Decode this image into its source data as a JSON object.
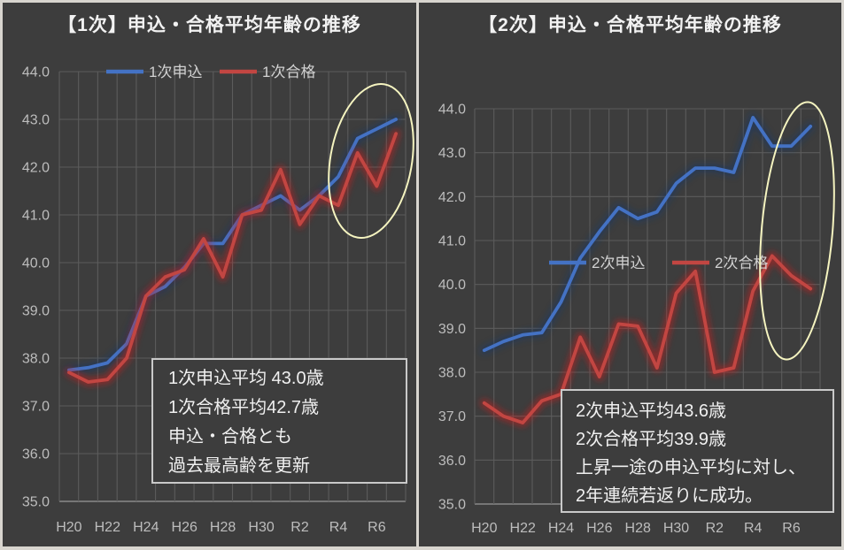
{
  "app": {
    "background_color": "#3d3d3d",
    "frame_border_color": "#d8d5cf"
  },
  "colors": {
    "grid": "#5c5c5c",
    "axis_line": "#8a8a8a",
    "tick_text": "#bdbdbd",
    "title_text": "#f2f2f2",
    "annotation_border": "#c9c9c9",
    "annotation_text": "#f0f0f0",
    "applicant_blue": "#4472c4",
    "pass_red": "#c24642",
    "highlight_yellow": "#f5f4c0"
  },
  "chart_data": [
    {
      "type": "line",
      "title": "【1次】申込・合格平均年齢の推移",
      "categories": [
        "H20",
        "H21",
        "H22",
        "H23",
        "H24",
        "H25",
        "H26",
        "H27",
        "H28",
        "H29",
        "H30",
        "R1",
        "R2",
        "R3",
        "R4",
        "R5",
        "R6",
        "R7"
      ],
      "x_tick_labels": [
        "H20",
        "H22",
        "H24",
        "H26",
        "H28",
        "H30",
        "R2",
        "R4",
        "R6"
      ],
      "ylim": [
        35.0,
        44.0
      ],
      "ytick_step": 1.0,
      "grid": true,
      "legend_position": "top-inside",
      "series": [
        {
          "name": "1次申込",
          "color": "#4472c4",
          "glow_color": "#16386b",
          "values": [
            37.75,
            37.8,
            37.9,
            38.3,
            39.3,
            39.5,
            39.9,
            40.4,
            40.4,
            41.0,
            41.2,
            41.4,
            41.1,
            41.4,
            41.8,
            42.6,
            42.8,
            43.0
          ]
        },
        {
          "name": "1次合格",
          "color": "#c24642",
          "glow_color": "#cc1f1f",
          "values": [
            37.7,
            37.5,
            37.55,
            38.0,
            39.3,
            39.7,
            39.85,
            40.5,
            39.7,
            41.0,
            41.1,
            41.95,
            40.8,
            41.4,
            41.2,
            42.3,
            41.6,
            42.7
          ]
        }
      ],
      "annotation": {
        "lines": [
          "1次申込平均 43.0歳",
          "1次合格平均42.7歳",
          "申込・合格とも",
          "過去最高齢を更新"
        ]
      },
      "highlight_color": "#f5f4c0"
    },
    {
      "type": "line",
      "title": "【2次】申込・合格平均年齢の推移",
      "categories": [
        "H20",
        "H21",
        "H22",
        "H23",
        "H24",
        "H25",
        "H26",
        "H27",
        "H28",
        "H29",
        "H30",
        "R1",
        "R2",
        "R3",
        "R4",
        "R5",
        "R6",
        "R7"
      ],
      "x_tick_labels": [
        "H20",
        "H22",
        "H24",
        "H26",
        "H28",
        "H30",
        "R2",
        "R4",
        "R6"
      ],
      "ylim": [
        35.0,
        44.0
      ],
      "ytick_step": 1.0,
      "grid": true,
      "legend_position": "middle-inside",
      "series": [
        {
          "name": "2次申込",
          "color": "#4472c4",
          "glow_color": "#16386b",
          "values": [
            38.5,
            38.7,
            38.85,
            38.9,
            39.6,
            40.6,
            41.2,
            41.75,
            41.5,
            41.65,
            42.3,
            42.65,
            42.65,
            42.55,
            43.8,
            43.15,
            43.15,
            43.6
          ]
        },
        {
          "name": "2次合格",
          "color": "#c24642",
          "glow_color": "#cc1f1f",
          "values": [
            37.3,
            37.0,
            36.85,
            37.35,
            37.5,
            38.8,
            37.9,
            39.1,
            39.05,
            38.1,
            39.8,
            40.3,
            38.0,
            38.1,
            39.85,
            40.65,
            40.2,
            39.9
          ]
        }
      ],
      "annotation": {
        "lines": [
          "2次申込平均43.6歳",
          "2次合格平均39.9歳",
          "上昇一途の申込平均に対し、",
          "2年連続若返りに成功。"
        ]
      },
      "highlight_color": "#f5f4c0"
    }
  ]
}
